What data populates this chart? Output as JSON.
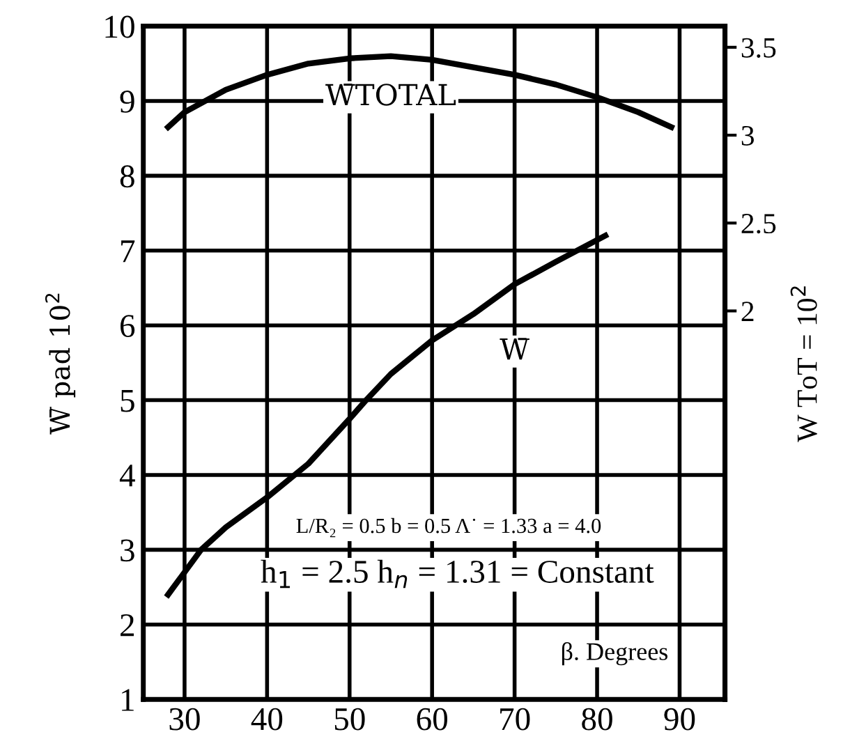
{
  "chart_data": {
    "type": "line",
    "xlabel": "β. Degrees",
    "ylabel": "W̄ pad 10$^{2}$",
    "y2label": "W ToT = 10$^{2}$",
    "xlim": [
      25,
      95.5
    ],
    "xticks": [
      30,
      40,
      50,
      60,
      70,
      80,
      90
    ],
    "ylim": [
      1,
      10
    ],
    "yticks": [
      1,
      2,
      3,
      4,
      5,
      6,
      7,
      8,
      9,
      10
    ],
    "y2lim": [
      -0.21,
      3.62
    ],
    "y2ticks": [
      2,
      2.5,
      3,
      3.5
    ],
    "grid": true,
    "legend": false,
    "marker": "none",
    "line_style": "solid",
    "series": [
      {
        "name": "W̄TOTAL",
        "color": "#000000",
        "x": [
          28,
          30,
          35,
          40,
          45,
          50,
          55,
          60,
          65,
          70,
          75,
          80,
          85,
          89
        ],
        "values": [
          8.65,
          8.85,
          9.15,
          9.35,
          9.5,
          9.57,
          9.6,
          9.55,
          9.45,
          9.35,
          9.22,
          9.05,
          8.85,
          8.65
        ]
      },
      {
        "name": "W̄",
        "color": "#000000",
        "x": [
          28,
          30,
          32,
          35,
          40,
          45,
          50,
          52,
          55,
          60,
          65,
          70,
          75,
          81
        ],
        "values": [
          2.4,
          2.7,
          3.0,
          3.3,
          3.7,
          4.15,
          4.75,
          5.0,
          5.35,
          5.8,
          6.15,
          6.55,
          6.85,
          7.2
        ]
      }
    ],
    "annotations": [
      "L/R₂ = 0.5 b = 0.5 Λ˙ = 1.33 a = 4.0",
      "h$_{1}$ = 2.5 h$_{n}$ = 1.31 = Constant"
    ]
  }
}
